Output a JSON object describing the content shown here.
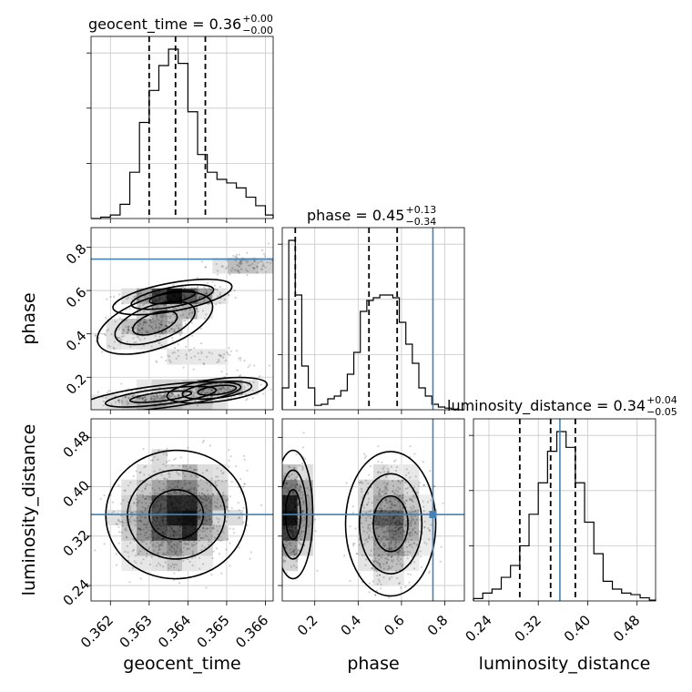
{
  "chart_data": {
    "type": "corner",
    "parameters": [
      "geocent_time",
      "phase",
      "luminosity_distance"
    ],
    "truths": [
      null,
      0.745,
      0.355
    ],
    "truth_color": "#4682b4",
    "grid": true,
    "titles": [
      {
        "param": "geocent_time",
        "text": "geocent_time = 0.36",
        "plus": "+0.00",
        "minus": "−0.00"
      },
      {
        "param": "phase",
        "text": "phase = 0.45",
        "plus": "+0.13",
        "minus": "−0.34"
      },
      {
        "param": "luminosity_distance",
        "text": "luminosity_distance = 0.34",
        "plus": "+0.04",
        "minus": "−0.05"
      }
    ],
    "axes": {
      "geocent_time": {
        "range": [
          0.3615,
          0.3662
        ],
        "ticks": [
          0.362,
          0.363,
          0.364,
          0.365,
          0.366
        ],
        "tick_labels": [
          "0.362",
          "0.363",
          "0.364",
          "0.365",
          "0.366"
        ]
      },
      "phase": {
        "range": [
          0.05,
          0.89
        ],
        "ticks": [
          0.2,
          0.4,
          0.6,
          0.8
        ],
        "tick_labels": [
          "0.2",
          "0.4",
          "0.6",
          "0.8"
        ]
      },
      "luminosity_distance": {
        "range": [
          0.215,
          0.51
        ],
        "ticks": [
          0.24,
          0.32,
          0.4,
          0.48
        ],
        "tick_labels": [
          "0.24",
          "0.32",
          "0.40",
          "0.48"
        ]
      }
    },
    "histograms": [
      {
        "param": "geocent_time",
        "bin_edges": [
          0.3615,
          0.36175,
          0.362,
          0.36225,
          0.3625,
          0.36275,
          0.363,
          0.36325,
          0.3635,
          0.36375,
          0.364,
          0.36425,
          0.3645,
          0.36475,
          0.365,
          0.36525,
          0.3655,
          0.36575,
          0.366,
          0.3662
        ],
        "counts": [
          0,
          2,
          5,
          20,
          65,
          135,
          180,
          215,
          238,
          218,
          150,
          90,
          65,
          55,
          50,
          43,
          30,
          18,
          5
        ],
        "quantiles": [
          0.363,
          0.36368,
          0.36445
        ]
      },
      {
        "param": "phase",
        "bin_edges": [
          0.05,
          0.08,
          0.11,
          0.14,
          0.17,
          0.2,
          0.23,
          0.26,
          0.29,
          0.32,
          0.35,
          0.38,
          0.41,
          0.44,
          0.47,
          0.5,
          0.53,
          0.56,
          0.59,
          0.62,
          0.65,
          0.68,
          0.71,
          0.74,
          0.77,
          0.8,
          0.83,
          0.86,
          0.89
        ],
        "counts": [
          40,
          310,
          210,
          80,
          40,
          8,
          10,
          20,
          25,
          35,
          65,
          105,
          180,
          200,
          205,
          210,
          210,
          205,
          160,
          120,
          85,
          40,
          25,
          10,
          5,
          3,
          1,
          0
        ],
        "quantiles": [
          0.11,
          0.45,
          0.58
        ]
      },
      {
        "param": "luminosity_distance",
        "bin_edges": [
          0.215,
          0.23,
          0.245,
          0.26,
          0.275,
          0.29,
          0.305,
          0.32,
          0.335,
          0.35,
          0.365,
          0.38,
          0.395,
          0.41,
          0.425,
          0.44,
          0.455,
          0.47,
          0.485,
          0.5,
          0.51
        ],
        "counts": [
          3,
          10,
          15,
          30,
          45,
          70,
          110,
          150,
          190,
          215,
          195,
          150,
          100,
          60,
          25,
          15,
          10,
          8,
          4,
          1
        ],
        "quantiles": [
          0.29,
          0.34,
          0.38
        ]
      }
    ],
    "scatter_panels": [
      {
        "x": "geocent_time",
        "y": "phase",
        "blobs": [
          {
            "x": 0.3636,
            "y": 0.57,
            "sx": 0.0006,
            "sy": 0.025,
            "rho": 0.3,
            "w": 0.35
          },
          {
            "x": 0.36315,
            "y": 0.45,
            "sx": 0.0006,
            "sy": 0.045,
            "rho": 0.55,
            "w": 0.25
          },
          {
            "x": 0.3633,
            "y": 0.11,
            "sx": 0.0008,
            "sy": 0.02,
            "rho": 0.2,
            "w": 0.25
          },
          {
            "x": 0.36475,
            "y": 0.14,
            "sx": 0.0005,
            "sy": 0.02,
            "rho": 0.2,
            "w": 0.15
          },
          {
            "x": 0.3655,
            "y": 0.72,
            "sx": 0.0005,
            "sy": 0.03,
            "rho": 0.4,
            "w": 0.1
          },
          {
            "x": 0.3642,
            "y": 0.3,
            "sx": 0.001,
            "sy": 0.05,
            "rho": -0.6,
            "w": 0.08
          }
        ],
        "contours": [
          {
            "level": 0.39,
            "centers": [
              [
                0.3636,
                0.57,
                0.0004,
                0.025
              ],
              [
                0.3632,
                0.48,
                0.0004,
                0.035
              ],
              [
                0.3633,
                0.11,
                0.0006,
                0.012
              ]
            ]
          },
          {
            "level": 0.86,
            "centers": [
              [
                0.3635,
                0.53,
                0.0009,
                0.06
              ],
              [
                0.3634,
                0.12,
                0.0012,
                0.03
              ],
              [
                0.3647,
                0.145,
                0.0006,
                0.025
              ]
            ]
          }
        ]
      },
      {
        "x": "geocent_time",
        "y": "luminosity_distance",
        "blobs": [
          {
            "x": 0.3637,
            "y": 0.355,
            "sx": 0.0007,
            "sy": 0.04,
            "rho": 0.1,
            "w": 1.0
          }
        ]
      },
      {
        "x": "phase",
        "y": "luminosity_distance",
        "blobs": [
          {
            "x": 0.1,
            "y": 0.355,
            "sx": 0.035,
            "sy": 0.04,
            "rho": 0.0,
            "w": 0.4
          },
          {
            "x": 0.55,
            "y": 0.34,
            "sx": 0.08,
            "sy": 0.045,
            "rho": 0.0,
            "w": 0.6
          }
        ]
      }
    ],
    "axis_labels": {
      "x": [
        "geocent_time",
        "phase",
        "luminosity_distance"
      ],
      "y": [
        "phase",
        "luminosity_distance"
      ]
    }
  }
}
